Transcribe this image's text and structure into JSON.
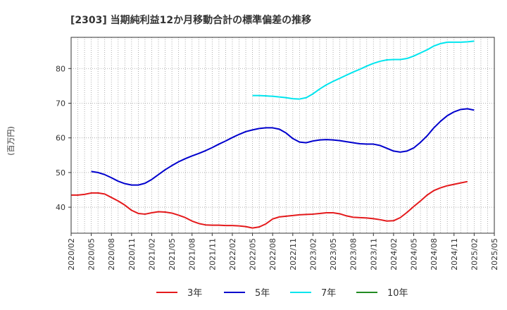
{
  "chart_data": {
    "type": "line",
    "title": "[2303]  当期純利益12か月移動合計の標準偏差の推移",
    "ylabel": "(百万円)",
    "xlabel": "",
    "ylim": [
      32.5,
      89
    ],
    "yticks": [
      40,
      50,
      60,
      70,
      80
    ],
    "grid": true,
    "legend_position": "bottom",
    "x_tick_labels": [
      "2020/02",
      "2020/05",
      "2020/08",
      "2020/11",
      "2021/02",
      "2021/05",
      "2021/08",
      "2021/11",
      "2022/02",
      "2022/05",
      "2022/08",
      "2022/11",
      "2023/02",
      "2023/05",
      "2023/08",
      "2023/11",
      "2024/02",
      "2024/05",
      "2024/08",
      "2024/11",
      "2025/02",
      "2025/05"
    ],
    "series": [
      {
        "name": "3年",
        "color": "#e41a1c",
        "start_index": 0,
        "values": [
          43.5,
          43.5,
          43.7,
          44.1,
          44.1,
          43.8,
          42.8,
          41.8,
          40.6,
          39.1,
          38.2,
          38.0,
          38.4,
          38.7,
          38.6,
          38.3,
          37.7,
          37.0,
          36.0,
          35.3,
          34.9,
          34.8,
          34.8,
          34.7,
          34.7,
          34.6,
          34.4,
          34.0,
          34.3,
          35.2,
          36.6,
          37.2,
          37.4,
          37.6,
          37.8,
          37.9,
          38.0,
          38.2,
          38.4,
          38.4,
          38.1,
          37.5,
          37.1,
          37.0,
          36.9,
          36.7,
          36.4,
          36.0,
          36.1,
          37.0,
          38.5,
          40.2,
          41.8,
          43.5,
          44.8,
          45.6,
          46.2,
          46.6,
          47.0,
          47.4
        ]
      },
      {
        "name": "5年",
        "color": "#0000cd",
        "start_index": 3,
        "values": [
          50.3,
          50.0,
          49.4,
          48.5,
          47.5,
          46.8,
          46.4,
          46.4,
          46.9,
          48.0,
          49.4,
          50.8,
          52.0,
          53.1,
          54.0,
          54.8,
          55.5,
          56.3,
          57.2,
          58.2,
          59.1,
          60.1,
          61.0,
          61.8,
          62.3,
          62.7,
          62.9,
          62.9,
          62.5,
          61.4,
          59.8,
          58.8,
          58.6,
          59.1,
          59.4,
          59.5,
          59.4,
          59.2,
          58.9,
          58.6,
          58.3,
          58.2,
          58.2,
          57.8,
          57.0,
          56.2,
          55.9,
          56.2,
          57.1,
          58.7,
          60.6,
          62.9,
          64.8,
          66.4,
          67.5,
          68.2,
          68.4,
          68.0
        ]
      },
      {
        "name": "7年",
        "color": "#00e5ee",
        "start_index": 27,
        "values": [
          72.2,
          72.2,
          72.1,
          72.0,
          71.8,
          71.6,
          71.3,
          71.2,
          71.6,
          72.7,
          74.1,
          75.3,
          76.3,
          77.2,
          78.1,
          79.0,
          79.8,
          80.7,
          81.5,
          82.1,
          82.5,
          82.6,
          82.6,
          82.9,
          83.6,
          84.5,
          85.4,
          86.5,
          87.2,
          87.6,
          87.6,
          87.6,
          87.7,
          87.9
        ]
      },
      {
        "name": "10年",
        "color": "#228b22",
        "start_index": 0,
        "values": []
      }
    ]
  }
}
